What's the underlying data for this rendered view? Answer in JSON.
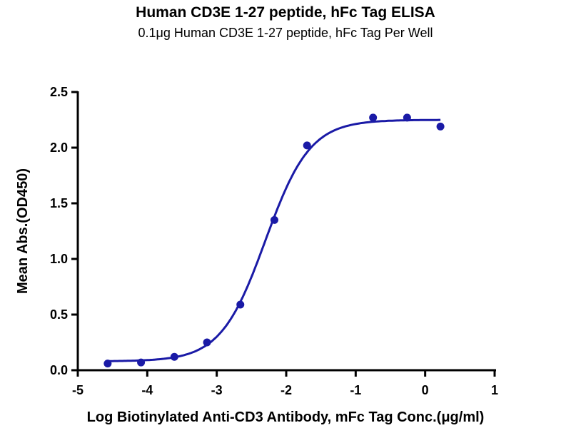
{
  "chart_data": {
    "type": "scatter",
    "title": "Human CD3E 1-27 peptide, hFc Tag ELISA",
    "subtitle": "0.1μg Human CD3E 1-27 peptide, hFc Tag Per Well",
    "xlabel": "Log Biotinylated  Anti-CD3 Antibody, mFc Tag Conc.(μg/ml)",
    "ylabel": "Mean Abs.(OD450)",
    "xlim": [
      -5,
      1
    ],
    "ylim": [
      0,
      2.5
    ],
    "xticks": [
      "-5",
      "-4",
      "-3",
      "-2",
      "-1",
      "0",
      "1"
    ],
    "yticks": [
      "0.0",
      "0.5",
      "1.0",
      "1.5",
      "2.0",
      "2.5"
    ],
    "grid": false,
    "color": "#1a1aa6",
    "series": [
      {
        "name": "OD450",
        "x": [
          -4.57,
          -4.09,
          -3.61,
          -3.14,
          -2.66,
          -2.17,
          -1.7,
          -0.75,
          -0.26,
          0.22
        ],
        "y": [
          0.06,
          0.07,
          0.12,
          0.25,
          0.59,
          1.35,
          2.02,
          2.27,
          2.27,
          2.19
        ]
      }
    ],
    "fit": {
      "model": "4PL",
      "bottom": 0.08,
      "top": 2.25,
      "logEC50": -2.3,
      "hill": 1.35
    }
  }
}
